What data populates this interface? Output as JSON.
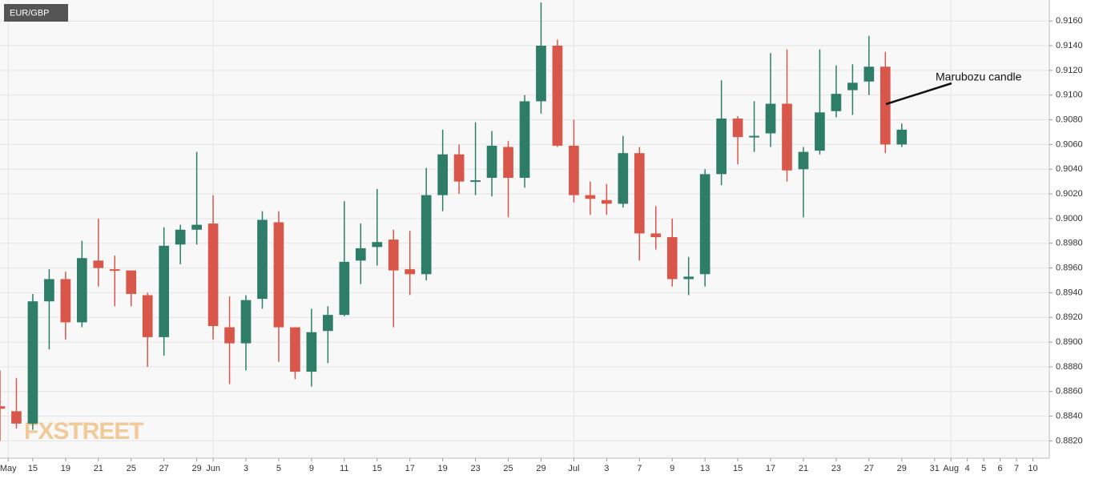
{
  "chart_data": {
    "type": "candlestick",
    "title": "EUR/GBP",
    "annotation": "Marubozu candle",
    "watermark": "FXSTREET",
    "up_color": "#2e7d68",
    "down_color": "#d9574a",
    "grid": true,
    "open": [
      0.8848,
      0.8844,
      0.8834,
      0.8933,
      0.8951,
      0.8916,
      0.8966,
      0.8959,
      0.8958,
      0.8938,
      0.8904,
      0.8979,
      0.8991,
      0.8996,
      0.8912,
      0.8899,
      0.8935,
      0.8997,
      0.8912,
      0.8876,
      0.8909,
      0.8922,
      0.8966,
      0.8977,
      0.8983,
      0.8959,
      0.8955,
      0.9019,
      0.9052,
      0.903,
      0.9033,
      0.9058,
      0.9033,
      0.9095,
      0.914,
      0.9059,
      0.9019,
      0.9015,
      0.9012,
      0.9053,
      0.8988,
      0.8985,
      0.8951,
      0.8955,
      0.9036,
      0.9081,
      0.9066,
      0.9069,
      0.9093,
      0.904,
      0.9055,
      0.9087,
      0.9104,
      0.9111,
      0.9123,
      0.906
    ],
    "high": [
      0.8877,
      0.8871,
      0.8939,
      0.8959,
      0.8957,
      0.8982,
      0.9,
      0.897,
      0.8958,
      0.894,
      0.8993,
      0.8995,
      0.9054,
      0.9019,
      0.8937,
      0.8938,
      0.9006,
      0.9006,
      0.8912,
      0.8927,
      0.8929,
      0.9014,
      0.8996,
      0.9024,
      0.8991,
      0.899,
      0.9041,
      0.9072,
      0.906,
      0.9078,
      0.9071,
      0.9063,
      0.91,
      0.9175,
      0.9145,
      0.908,
      0.903,
      0.9028,
      0.9067,
      0.9058,
      0.901,
      0.9,
      0.8969,
      0.904,
      0.9112,
      0.9083,
      0.9095,
      0.9134,
      0.9137,
      0.9058,
      0.9137,
      0.9124,
      0.9125,
      0.9148,
      0.9135,
      0.9077
    ],
    "low": [
      0.882,
      0.883,
      0.8829,
      0.8894,
      0.8902,
      0.8912,
      0.8945,
      0.8929,
      0.8929,
      0.888,
      0.8889,
      0.8963,
      0.8979,
      0.8902,
      0.8866,
      0.8877,
      0.8927,
      0.8884,
      0.887,
      0.8864,
      0.8883,
      0.8921,
      0.8947,
      0.8962,
      0.8912,
      0.8938,
      0.895,
      0.9006,
      0.902,
      0.9019,
      0.9018,
      0.9001,
      0.9025,
      0.9085,
      0.9058,
      0.9013,
      0.9003,
      0.9003,
      0.9009,
      0.8966,
      0.8975,
      0.8945,
      0.8938,
      0.8945,
      0.9027,
      0.9044,
      0.9054,
      0.9058,
      0.903,
      0.9001,
      0.9052,
      0.9082,
      0.9084,
      0.91,
      0.9053,
      0.9058
    ],
    "close": [
      0.8846,
      0.8834,
      0.8933,
      0.8951,
      0.8916,
      0.8968,
      0.896,
      0.8958,
      0.8939,
      0.8904,
      0.8978,
      0.8991,
      0.8995,
      0.8913,
      0.8899,
      0.8934,
      0.8999,
      0.8912,
      0.8876,
      0.8908,
      0.8922,
      0.8965,
      0.8976,
      0.8981,
      0.8958,
      0.8955,
      0.9019,
      0.9052,
      0.903,
      0.9031,
      0.9059,
      0.9033,
      0.9095,
      0.914,
      0.9059,
      0.9019,
      0.9016,
      0.9012,
      0.9053,
      0.8988,
      0.8985,
      0.8951,
      0.8953,
      0.9036,
      0.9081,
      0.9066,
      0.9067,
      0.9093,
      0.9039,
      0.9054,
      0.9086,
      0.9101,
      0.911,
      0.9123,
      0.906,
      0.9072
    ],
    "xlim": [
      0,
      64
    ],
    "xticks": [
      {
        "value": 0.5,
        "label": "May"
      },
      {
        "value": 2,
        "label": "15"
      },
      {
        "value": 4,
        "label": "19"
      },
      {
        "value": 6,
        "label": "21"
      },
      {
        "value": 8,
        "label": "25"
      },
      {
        "value": 10,
        "label": "27"
      },
      {
        "value": 12,
        "label": "29"
      },
      {
        "value": 13,
        "label": "Jun"
      },
      {
        "value": 15,
        "label": "3"
      },
      {
        "value": 17,
        "label": "5"
      },
      {
        "value": 19,
        "label": "9"
      },
      {
        "value": 21,
        "label": "11"
      },
      {
        "value": 23,
        "label": "15"
      },
      {
        "value": 25,
        "label": "17"
      },
      {
        "value": 27,
        "label": "19"
      },
      {
        "value": 29,
        "label": "23"
      },
      {
        "value": 31,
        "label": "25"
      },
      {
        "value": 33,
        "label": "29"
      },
      {
        "value": 35,
        "label": "Jul"
      },
      {
        "value": 37,
        "label": "3"
      },
      {
        "value": 39,
        "label": "7"
      },
      {
        "value": 41,
        "label": "9"
      },
      {
        "value": 43,
        "label": "13"
      },
      {
        "value": 45,
        "label": "15"
      },
      {
        "value": 47,
        "label": "17"
      },
      {
        "value": 49,
        "label": "21"
      },
      {
        "value": 51,
        "label": "23"
      },
      {
        "value": 53,
        "label": "27"
      },
      {
        "value": 55,
        "label": "29"
      },
      {
        "value": 57,
        "label": "31"
      },
      {
        "value": 58,
        "label": "Aug"
      },
      {
        "value": 59,
        "label": "4"
      },
      {
        "value": 60,
        "label": "5"
      },
      {
        "value": 61,
        "label": "6"
      },
      {
        "value": 62,
        "label": "7"
      },
      {
        "value": 63,
        "label": "10"
      }
    ],
    "ylim": [
      0.8806,
      0.9177
    ],
    "yticks": [
      {
        "value": 0.882,
        "label": "0.8820"
      },
      {
        "value": 0.884,
        "label": "0.8840"
      },
      {
        "value": 0.886,
        "label": "0.8860"
      },
      {
        "value": 0.888,
        "label": "0.8880"
      },
      {
        "value": 0.89,
        "label": "0.8900"
      },
      {
        "value": 0.892,
        "label": "0.8920"
      },
      {
        "value": 0.894,
        "label": "0.8940"
      },
      {
        "value": 0.896,
        "label": "0.8960"
      },
      {
        "value": 0.898,
        "label": "0.8980"
      },
      {
        "value": 0.9,
        "label": "0.9000"
      },
      {
        "value": 0.902,
        "label": "0.9020"
      },
      {
        "value": 0.904,
        "label": "0.9040"
      },
      {
        "value": 0.906,
        "label": "0.9060"
      },
      {
        "value": 0.908,
        "label": "0.9080"
      },
      {
        "value": 0.91,
        "label": "0.9100"
      },
      {
        "value": 0.912,
        "label": "0.9120"
      },
      {
        "value": 0.914,
        "label": "0.9140"
      },
      {
        "value": 0.916,
        "label": "0.9160"
      }
    ]
  }
}
